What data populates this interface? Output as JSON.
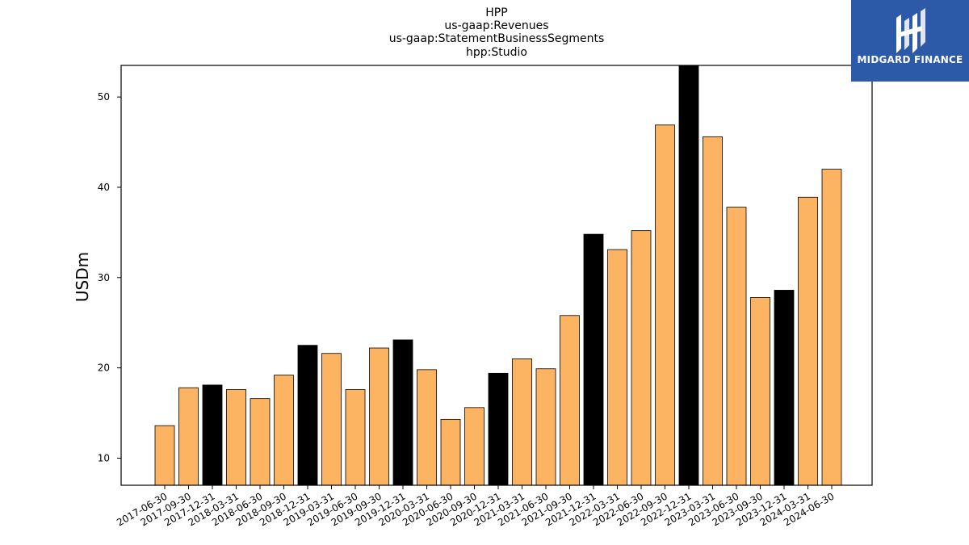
{
  "chart_data": {
    "type": "bar",
    "title_lines": [
      "HPP",
      "us-gaap:Revenues",
      "us-gaap:StatementBusinessSegments",
      "hpp:Studio"
    ],
    "xlabel": "",
    "ylabel": "USDm",
    "ylim": [
      7,
      53.5
    ],
    "yticks": [
      10,
      20,
      30,
      40,
      50
    ],
    "grid": false,
    "categories": [
      "2017-06-30",
      "2017-09-30",
      "2017-12-31",
      "2018-03-31",
      "2018-06-30",
      "2018-09-30",
      "2018-12-31",
      "2019-03-31",
      "2019-06-30",
      "2019-09-30",
      "2019-12-31",
      "2020-03-31",
      "2020-06-30",
      "2020-09-30",
      "2020-12-31",
      "2021-03-31",
      "2021-06-30",
      "2021-09-30",
      "2021-12-31",
      "2022-03-31",
      "2022-06-30",
      "2022-09-30",
      "2022-12-31",
      "2023-03-31",
      "2023-06-30",
      "2023-09-30",
      "2023-12-31",
      "2024-03-31",
      "2024-06-30"
    ],
    "values": [
      13.6,
      17.8,
      18.1,
      17.6,
      16.6,
      19.2,
      22.5,
      21.6,
      17.6,
      22.2,
      23.1,
      19.8,
      14.3,
      15.6,
      19.4,
      21.0,
      19.9,
      25.8,
      34.8,
      33.1,
      35.2,
      46.9,
      53.5,
      45.6,
      37.8,
      27.8,
      28.6,
      38.9,
      42.0
    ],
    "bar_colors": {
      "quarter": "#fdb462",
      "year_end": "#000000",
      "edge": "#000000"
    }
  },
  "logo": {
    "text": "MIDGARD FINANCE",
    "background": "#2c5aa8"
  }
}
